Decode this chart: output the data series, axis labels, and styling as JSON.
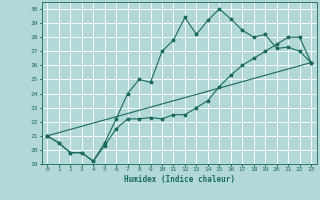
{
  "title": "",
  "xlabel": "Humidex (Indice chaleur)",
  "background_color": "#b2d8d8",
  "grid_color": "#ffffff",
  "line_color": "#1a6b5a",
  "xlim": [
    -0.5,
    23.5
  ],
  "ylim": [
    19,
    30.5
  ],
  "yticks": [
    19,
    20,
    21,
    22,
    23,
    24,
    25,
    26,
    27,
    28,
    29,
    30
  ],
  "xticks": [
    0,
    1,
    2,
    3,
    4,
    5,
    6,
    7,
    8,
    9,
    10,
    11,
    12,
    13,
    14,
    15,
    16,
    17,
    18,
    19,
    20,
    21,
    22,
    23
  ],
  "line1_x": [
    0,
    1,
    2,
    3,
    4,
    5,
    6,
    7,
    8,
    9,
    10,
    11,
    12,
    13,
    14,
    15,
    16,
    17,
    18,
    19,
    20,
    21,
    22,
    23
  ],
  "line1_y": [
    21.0,
    20.5,
    19.8,
    19.8,
    19.2,
    20.3,
    21.5,
    22.2,
    22.2,
    22.3,
    22.2,
    22.5,
    22.5,
    23.0,
    23.5,
    24.5,
    25.3,
    26.0,
    26.5,
    27.0,
    27.5,
    28.0,
    28.0,
    26.2
  ],
  "line2_x": [
    0,
    1,
    2,
    3,
    4,
    5,
    6,
    7,
    8,
    9,
    10,
    11,
    12,
    13,
    14,
    15,
    16,
    17,
    18,
    19,
    20,
    21,
    22,
    23
  ],
  "line2_y": [
    21.0,
    20.5,
    19.8,
    19.8,
    19.2,
    20.5,
    22.2,
    24.0,
    25.0,
    24.8,
    27.0,
    27.8,
    29.4,
    28.2,
    29.2,
    30.0,
    29.3,
    28.5,
    28.0,
    28.2,
    27.2,
    27.3,
    27.0,
    26.2
  ],
  "line3_x": [
    0,
    23
  ],
  "line3_y": [
    21.0,
    26.2
  ]
}
